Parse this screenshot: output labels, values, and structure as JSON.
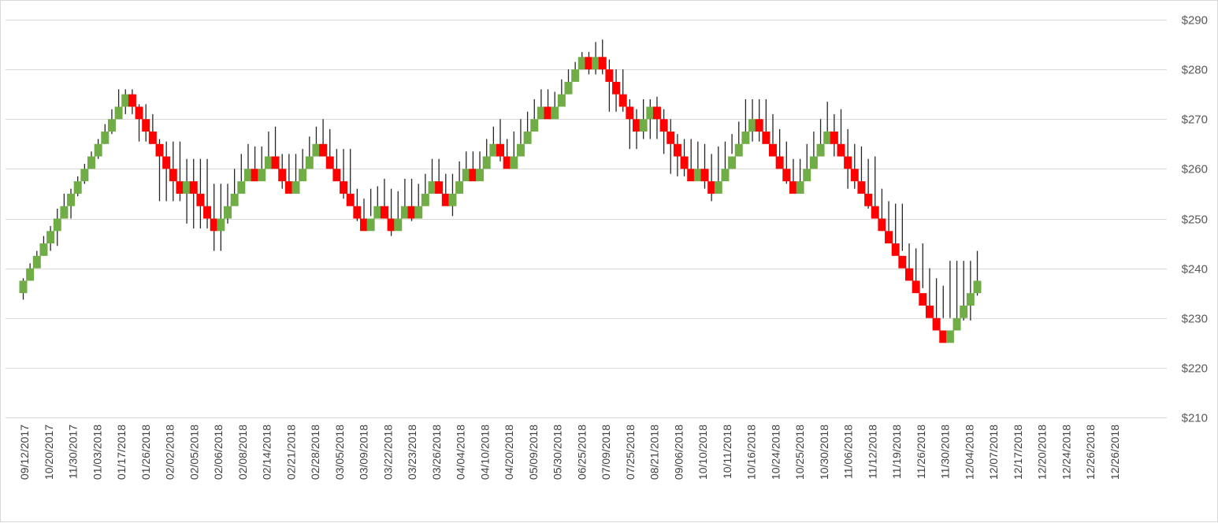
{
  "chart_data": {
    "type": "renko",
    "title": "",
    "xlabel": "",
    "ylabel": "",
    "ylim": [
      210,
      290
    ],
    "y_ticks": [
      210,
      220,
      230,
      240,
      250,
      260,
      270,
      280,
      290
    ],
    "y_tick_labels": [
      "$210",
      "$220",
      "$230",
      "$240",
      "$250",
      "$260",
      "$270",
      "$280",
      "$290"
    ],
    "y_axis_position": "right",
    "grid": true,
    "brick_size": 2.5,
    "start_price": 235,
    "up_color": "#70ad47",
    "down_color": "#ff0000",
    "x_tick_labels": [
      "09/12/2017",
      "10/20/2017",
      "11/30/2017",
      "01/03/2018",
      "01/17/2018",
      "01/26/2018",
      "02/02/2018",
      "02/05/2018",
      "02/06/2018",
      "02/08/2018",
      "02/14/2018",
      "02/21/2018",
      "02/28/2018",
      "03/05/2018",
      "03/09/2018",
      "03/22/2018",
      "03/23/2018",
      "03/26/2018",
      "04/04/2018",
      "04/10/2018",
      "04/20/2018",
      "05/09/2018",
      "05/30/2018",
      "06/25/2018",
      "07/09/2018",
      "07/25/2018",
      "08/21/2018",
      "09/06/2018",
      "10/10/2018",
      "10/11/2018",
      "10/16/2018",
      "10/24/2018",
      "10/25/2018",
      "10/30/2018",
      "11/06/2018",
      "11/12/2018",
      "11/19/2018",
      "11/26/2018",
      "11/30/2018",
      "12/04/2018",
      "12/07/2018",
      "12/17/2018",
      "12/20/2018",
      "12/24/2018",
      "12/26/2018",
      "12/26/2018"
    ],
    "bricks": [
      {
        "d": "up",
        "hi": 238,
        "lo": 233.7
      },
      {
        "d": "up",
        "hi": 241,
        "lo": 237.5
      },
      {
        "d": "up",
        "hi": 243.5,
        "lo": 240
      },
      {
        "d": "up",
        "hi": 246.5,
        "lo": 242.5
      },
      {
        "d": "up",
        "hi": 248.5,
        "lo": 243.5
      },
      {
        "d": "up",
        "hi": 252,
        "lo": 244.5
      },
      {
        "d": "up",
        "hi": 255,
        "lo": 250
      },
      {
        "d": "up",
        "hi": 256,
        "lo": 250
      },
      {
        "d": "up",
        "hi": 258.5,
        "lo": 254.5
      },
      {
        "d": "up",
        "hi": 261,
        "lo": 257
      },
      {
        "d": "up",
        "hi": 263.5,
        "lo": 260
      },
      {
        "d": "up",
        "hi": 266,
        "lo": 262
      },
      {
        "d": "up",
        "hi": 269,
        "lo": 265
      },
      {
        "d": "up",
        "hi": 272,
        "lo": 267
      },
      {
        "d": "up",
        "hi": 276,
        "lo": 270
      },
      {
        "d": "up",
        "hi": 276,
        "lo": 271
      },
      {
        "d": "down",
        "hi": 276,
        "lo": 271
      },
      {
        "d": "down",
        "hi": 273,
        "lo": 265.5
      },
      {
        "d": "down",
        "hi": 273,
        "lo": 265.5
      },
      {
        "d": "down",
        "hi": 271,
        "lo": 265.5
      },
      {
        "d": "down",
        "hi": 266,
        "lo": 253.5
      },
      {
        "d": "down",
        "hi": 265.5,
        "lo": 253.5
      },
      {
        "d": "down",
        "hi": 265.5,
        "lo": 253.5
      },
      {
        "d": "down",
        "hi": 265.5,
        "lo": 253.5
      },
      {
        "d": "up",
        "hi": 262,
        "lo": 249
      },
      {
        "d": "down",
        "hi": 262,
        "lo": 248
      },
      {
        "d": "down",
        "hi": 262,
        "lo": 248
      },
      {
        "d": "down",
        "hi": 262,
        "lo": 248
      },
      {
        "d": "down",
        "hi": 257,
        "lo": 243.5
      },
      {
        "d": "up",
        "hi": 257,
        "lo": 243.5
      },
      {
        "d": "up",
        "hi": 257,
        "lo": 249
      },
      {
        "d": "up",
        "hi": 260,
        "lo": 253
      },
      {
        "d": "up",
        "hi": 263,
        "lo": 257.5
      },
      {
        "d": "up",
        "hi": 265,
        "lo": 260
      },
      {
        "d": "down",
        "hi": 264.5,
        "lo": 260
      },
      {
        "d": "up",
        "hi": 264.5,
        "lo": 260
      },
      {
        "d": "up",
        "hi": 267.5,
        "lo": 261
      },
      {
        "d": "down",
        "hi": 268.5,
        "lo": 261
      },
      {
        "d": "down",
        "hi": 263,
        "lo": 256
      },
      {
        "d": "down",
        "hi": 263,
        "lo": 256
      },
      {
        "d": "up",
        "hi": 263,
        "lo": 255
      },
      {
        "d": "up",
        "hi": 264,
        "lo": 258
      },
      {
        "d": "up",
        "hi": 266.5,
        "lo": 262
      },
      {
        "d": "up",
        "hi": 268.5,
        "lo": 263
      },
      {
        "d": "down",
        "hi": 270,
        "lo": 264.5
      },
      {
        "d": "down",
        "hi": 268,
        "lo": 260
      },
      {
        "d": "down",
        "hi": 264,
        "lo": 258
      },
      {
        "d": "down",
        "hi": 264,
        "lo": 254
      },
      {
        "d": "down",
        "hi": 264,
        "lo": 254
      },
      {
        "d": "down",
        "hi": 256,
        "lo": 249.5
      },
      {
        "d": "down",
        "hi": 254,
        "lo": 249.5
      },
      {
        "d": "up",
        "hi": 256,
        "lo": 250.5
      },
      {
        "d": "up",
        "hi": 256.5,
        "lo": 252
      },
      {
        "d": "down",
        "hi": 258,
        "lo": 250.5
      },
      {
        "d": "down",
        "hi": 256,
        "lo": 246.5
      },
      {
        "d": "up",
        "hi": 255.5,
        "lo": 248.5
      },
      {
        "d": "up",
        "hi": 258,
        "lo": 251
      },
      {
        "d": "down",
        "hi": 258,
        "lo": 249.5
      },
      {
        "d": "up",
        "hi": 257,
        "lo": 252
      },
      {
        "d": "up",
        "hi": 259,
        "lo": 255
      },
      {
        "d": "up",
        "hi": 262,
        "lo": 257
      },
      {
        "d": "down",
        "hi": 262,
        "lo": 256
      },
      {
        "d": "down",
        "hi": 259,
        "lo": 253
      },
      {
        "d": "up",
        "hi": 259,
        "lo": 250.5
      },
      {
        "d": "up",
        "hi": 261.5,
        "lo": 255
      },
      {
        "d": "up",
        "hi": 263.5,
        "lo": 259
      },
      {
        "d": "down",
        "hi": 263.5,
        "lo": 259
      },
      {
        "d": "up",
        "hi": 263.5,
        "lo": 259
      },
      {
        "d": "up",
        "hi": 266,
        "lo": 261
      },
      {
        "d": "up",
        "hi": 268.5,
        "lo": 263
      },
      {
        "d": "down",
        "hi": 270,
        "lo": 261.5
      },
      {
        "d": "down",
        "hi": 266,
        "lo": 261.5
      },
      {
        "d": "up",
        "hi": 267.5,
        "lo": 260.5
      },
      {
        "d": "up",
        "hi": 270,
        "lo": 265
      },
      {
        "d": "up",
        "hi": 271.5,
        "lo": 267
      },
      {
        "d": "up",
        "hi": 274,
        "lo": 270
      },
      {
        "d": "up",
        "hi": 276,
        "lo": 271
      },
      {
        "d": "down",
        "hi": 276,
        "lo": 271
      },
      {
        "d": "up",
        "hi": 275.5,
        "lo": 271
      },
      {
        "d": "up",
        "hi": 278,
        "lo": 273
      },
      {
        "d": "up",
        "hi": 280,
        "lo": 275
      },
      {
        "d": "up",
        "hi": 281.5,
        "lo": 278
      },
      {
        "d": "up",
        "hi": 283.5,
        "lo": 280
      },
      {
        "d": "down",
        "hi": 283.5,
        "lo": 279
      },
      {
        "d": "up",
        "hi": 285.5,
        "lo": 279
      },
      {
        "d": "down",
        "hi": 286,
        "lo": 279
      },
      {
        "d": "down",
        "hi": 282,
        "lo": 271.5
      },
      {
        "d": "down",
        "hi": 280,
        "lo": 271.5
      },
      {
        "d": "down",
        "hi": 280,
        "lo": 271.5
      },
      {
        "d": "down",
        "hi": 274,
        "lo": 264
      },
      {
        "d": "down",
        "hi": 272,
        "lo": 264
      },
      {
        "d": "up",
        "hi": 274,
        "lo": 266
      },
      {
        "d": "up",
        "hi": 274,
        "lo": 266
      },
      {
        "d": "down",
        "hi": 274.5,
        "lo": 266
      },
      {
        "d": "down",
        "hi": 272,
        "lo": 263
      },
      {
        "d": "down",
        "hi": 270,
        "lo": 259
      },
      {
        "d": "down",
        "hi": 267,
        "lo": 258.5
      },
      {
        "d": "down",
        "hi": 266,
        "lo": 258.5
      },
      {
        "d": "down",
        "hi": 266,
        "lo": 258
      },
      {
        "d": "up",
        "hi": 265.5,
        "lo": 259
      },
      {
        "d": "down",
        "hi": 265,
        "lo": 256
      },
      {
        "d": "down",
        "hi": 263,
        "lo": 253.5
      },
      {
        "d": "up",
        "hi": 264.5,
        "lo": 256.5
      },
      {
        "d": "up",
        "hi": 265.5,
        "lo": 259
      },
      {
        "d": "up",
        "hi": 267,
        "lo": 263
      },
      {
        "d": "up",
        "hi": 269.5,
        "lo": 264
      },
      {
        "d": "up",
        "hi": 274,
        "lo": 265.5
      },
      {
        "d": "up",
        "hi": 274,
        "lo": 265.5
      },
      {
        "d": "down",
        "hi": 274,
        "lo": 265.5
      },
      {
        "d": "down",
        "hi": 274,
        "lo": 265.5
      },
      {
        "d": "down",
        "hi": 271,
        "lo": 265
      },
      {
        "d": "down",
        "hi": 268,
        "lo": 262
      },
      {
        "d": "down",
        "hi": 265.5,
        "lo": 257
      },
      {
        "d": "down",
        "hi": 262,
        "lo": 257
      },
      {
        "d": "up",
        "hi": 262,
        "lo": 257
      },
      {
        "d": "up",
        "hi": 265,
        "lo": 259
      },
      {
        "d": "up",
        "hi": 267.5,
        "lo": 261
      },
      {
        "d": "up",
        "hi": 270,
        "lo": 264.5
      },
      {
        "d": "up",
        "hi": 273.5,
        "lo": 265
      },
      {
        "d": "down",
        "hi": 271,
        "lo": 262.5
      },
      {
        "d": "down",
        "hi": 272,
        "lo": 262.5
      },
      {
        "d": "down",
        "hi": 268,
        "lo": 256
      },
      {
        "d": "down",
        "hi": 265,
        "lo": 256
      },
      {
        "d": "down",
        "hi": 264.5,
        "lo": 256.5
      },
      {
        "d": "down",
        "hi": 262,
        "lo": 252
      },
      {
        "d": "down",
        "hi": 262.5,
        "lo": 252
      },
      {
        "d": "down",
        "hi": 256,
        "lo": 247.5
      },
      {
        "d": "down",
        "hi": 253.5,
        "lo": 247.5
      },
      {
        "d": "down",
        "hi": 253,
        "lo": 243.5
      },
      {
        "d": "down",
        "hi": 253,
        "lo": 243.5
      },
      {
        "d": "down",
        "hi": 245,
        "lo": 238.5
      },
      {
        "d": "down",
        "hi": 244,
        "lo": 236
      },
      {
        "d": "down",
        "hi": 245,
        "lo": 236
      },
      {
        "d": "down",
        "hi": 240,
        "lo": 230
      },
      {
        "d": "down",
        "hi": 238,
        "lo": 230
      },
      {
        "d": "down",
        "hi": 236.5,
        "lo": 230
      },
      {
        "d": "up",
        "hi": 241.5,
        "lo": 230
      },
      {
        "d": "up",
        "hi": 241.5,
        "lo": 229.5
      },
      {
        "d": "up",
        "hi": 241.5,
        "lo": 229.5
      },
      {
        "d": "up",
        "hi": 241.5,
        "lo": 229.5
      },
      {
        "d": "up",
        "hi": 243.5,
        "lo": 234.5
      }
    ]
  }
}
